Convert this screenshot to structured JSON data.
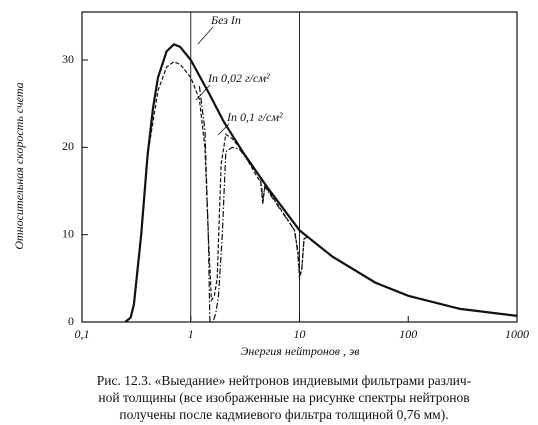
{
  "chart_data": {
    "type": "line",
    "ylabel": "Относительная скорость счета",
    "xlabel": "Энергия нейтронов , эв",
    "caption": [
      "Рис. 12.3. «Выедание» нейтронов индиевыми фильтрами различ-",
      "ной толщины (все изображенные на рисунке спектры нейтронов",
      "получены после кадмиевого фильтра толщиной 0,76 мм)."
    ],
    "xlog": true,
    "xlim": [
      0.1,
      1000
    ],
    "xticks": [
      {
        "value": 0.1,
        "label": "0,1"
      },
      1,
      10,
      100,
      1000
    ],
    "xgrid_lines": [
      1,
      10
    ],
    "ylim": [
      0,
      35.5
    ],
    "yticks": [
      0,
      10,
      20,
      30
    ],
    "series": [
      {
        "name": "Без In",
        "color": "#111111",
        "style": "solid",
        "x": [
          0.25,
          0.28,
          0.3,
          0.35,
          0.4,
          0.45,
          0.5,
          0.6,
          0.7,
          0.8,
          1,
          1.5,
          2,
          3,
          5,
          10,
          20,
          50,
          100,
          300,
          1000
        ],
        "values": [
          0,
          0.5,
          2,
          10,
          19,
          24.5,
          28,
          31,
          31.8,
          31.5,
          30,
          26,
          23,
          19.5,
          15.5,
          10.5,
          7.5,
          4.5,
          3,
          1.5,
          0.7
        ]
      },
      {
        "name": "In 0,02 г/см²",
        "color": "#111111",
        "style": "dashed",
        "x": [
          0.4,
          0.5,
          0.6,
          0.7,
          0.8,
          1,
          1.2,
          1.35,
          1.45,
          1.55,
          1.65,
          1.75,
          1.9,
          2.1,
          2.4,
          2.8,
          3,
          4,
          4.4,
          4.6,
          4.8,
          5.2,
          8,
          9,
          9.7,
          10,
          10.5,
          11,
          12
        ],
        "values": [
          19,
          26.5,
          29.2,
          29.8,
          29.5,
          28,
          25.5,
          20,
          10,
          2.5,
          3,
          5,
          18,
          21.5,
          21,
          20,
          19.5,
          16.8,
          16,
          13.5,
          15.5,
          15,
          11.5,
          10.5,
          8,
          5,
          6,
          9.5,
          9.8
        ]
      },
      {
        "name": "In 0,1 г/см²",
        "color": "#111111",
        "style": "dashdot",
        "x": [
          1.2,
          1.35,
          1.45,
          1.5,
          1.6,
          1.7,
          1.8,
          1.95,
          2.1,
          2.4,
          2.8,
          4.4,
          4.6,
          4.8,
          9,
          9.6,
          10,
          10.5,
          11,
          12
        ],
        "values": [
          27,
          22,
          10,
          0,
          0,
          1,
          3,
          10,
          19.5,
          20,
          19.8,
          16.5,
          14,
          15.5,
          10.5,
          8,
          5.5,
          6,
          9.5,
          9.8
        ]
      }
    ]
  }
}
